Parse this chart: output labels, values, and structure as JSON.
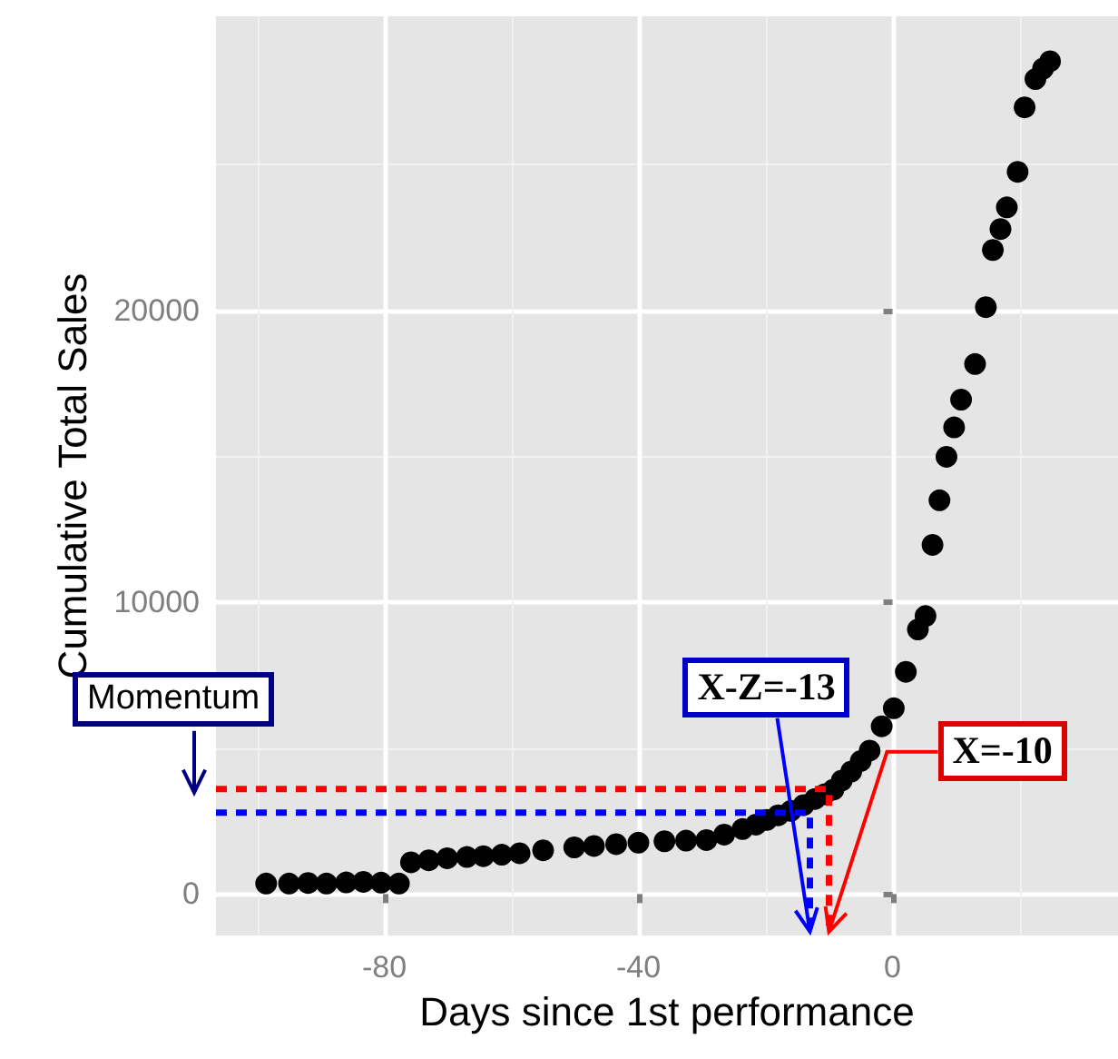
{
  "chart_data": {
    "type": "scatter",
    "xlabel": "Days since 1st performance",
    "ylabel": "Cumulative Total Sales",
    "xlim": [
      -106.5,
      35.5
    ],
    "xticks": [
      -80,
      -40,
      0
    ],
    "ylim": [
      -1420,
      30090
    ],
    "yticks": [
      0,
      10000,
      20000
    ],
    "grid": true,
    "marker": "circle",
    "series": [
      {
        "type": "line",
        "color": "#ff0000",
        "line_style": "dashed",
        "marker": "none",
        "x": [
          -106.5,
          -10,
          -10
        ],
        "values": [
          3600,
          3600,
          -1290
        ]
      },
      {
        "type": "line",
        "color": "#0000ff",
        "line_style": "dashed",
        "marker": "none",
        "x": [
          -106.5,
          -13,
          -13
        ],
        "values": [
          2790,
          2790,
          -1290
        ]
      },
      {
        "color": "#000000",
        "x": [
          -98.6,
          -95,
          -92,
          -89.1,
          -86,
          -83.3,
          -80.5,
          -77.7,
          -75.8,
          -73,
          -70.1,
          -67,
          -64.4,
          -61.5,
          -58.7,
          -55,
          -50.1,
          -47,
          -43.5,
          -40,
          -35.9,
          -32.5,
          -29.3,
          -26.5,
          -23.6,
          -21.5,
          -19.8,
          -18,
          -16,
          -14,
          -12.2,
          -10.7,
          -9.3,
          -8,
          -6.5,
          -5,
          -3.6,
          -1.7,
          0.2,
          2.1,
          4,
          5.2,
          6.3,
          7.4,
          8.5,
          9.7,
          10.8,
          13,
          14.7,
          15.8,
          17,
          18,
          19.7,
          20.8,
          22.5,
          23.7,
          24.8
        ],
        "values": [
          360,
          360,
          380,
          360,
          400,
          420,
          390,
          360,
          1090,
          1160,
          1230,
          1270,
          1300,
          1350,
          1400,
          1500,
          1600,
          1650,
          1710,
          1760,
          1810,
          1830,
          1850,
          2040,
          2230,
          2380,
          2540,
          2700,
          2850,
          3050,
          3260,
          3420,
          3580,
          3890,
          4200,
          4560,
          4920,
          5750,
          6370,
          7620,
          9070,
          9530,
          11970,
          13500,
          14990,
          16000,
          16950,
          18170,
          20120,
          22080,
          22800,
          23540,
          24760,
          26970,
          27940,
          28300,
          28550
        ]
      }
    ],
    "annotations": [
      "Momentum",
      {
        "text": "X-Z=-13",
        "x": -13,
        "y": -1290
      },
      {
        "text": "X=-10",
        "x": -10,
        "y": -1290
      }
    ]
  }
}
